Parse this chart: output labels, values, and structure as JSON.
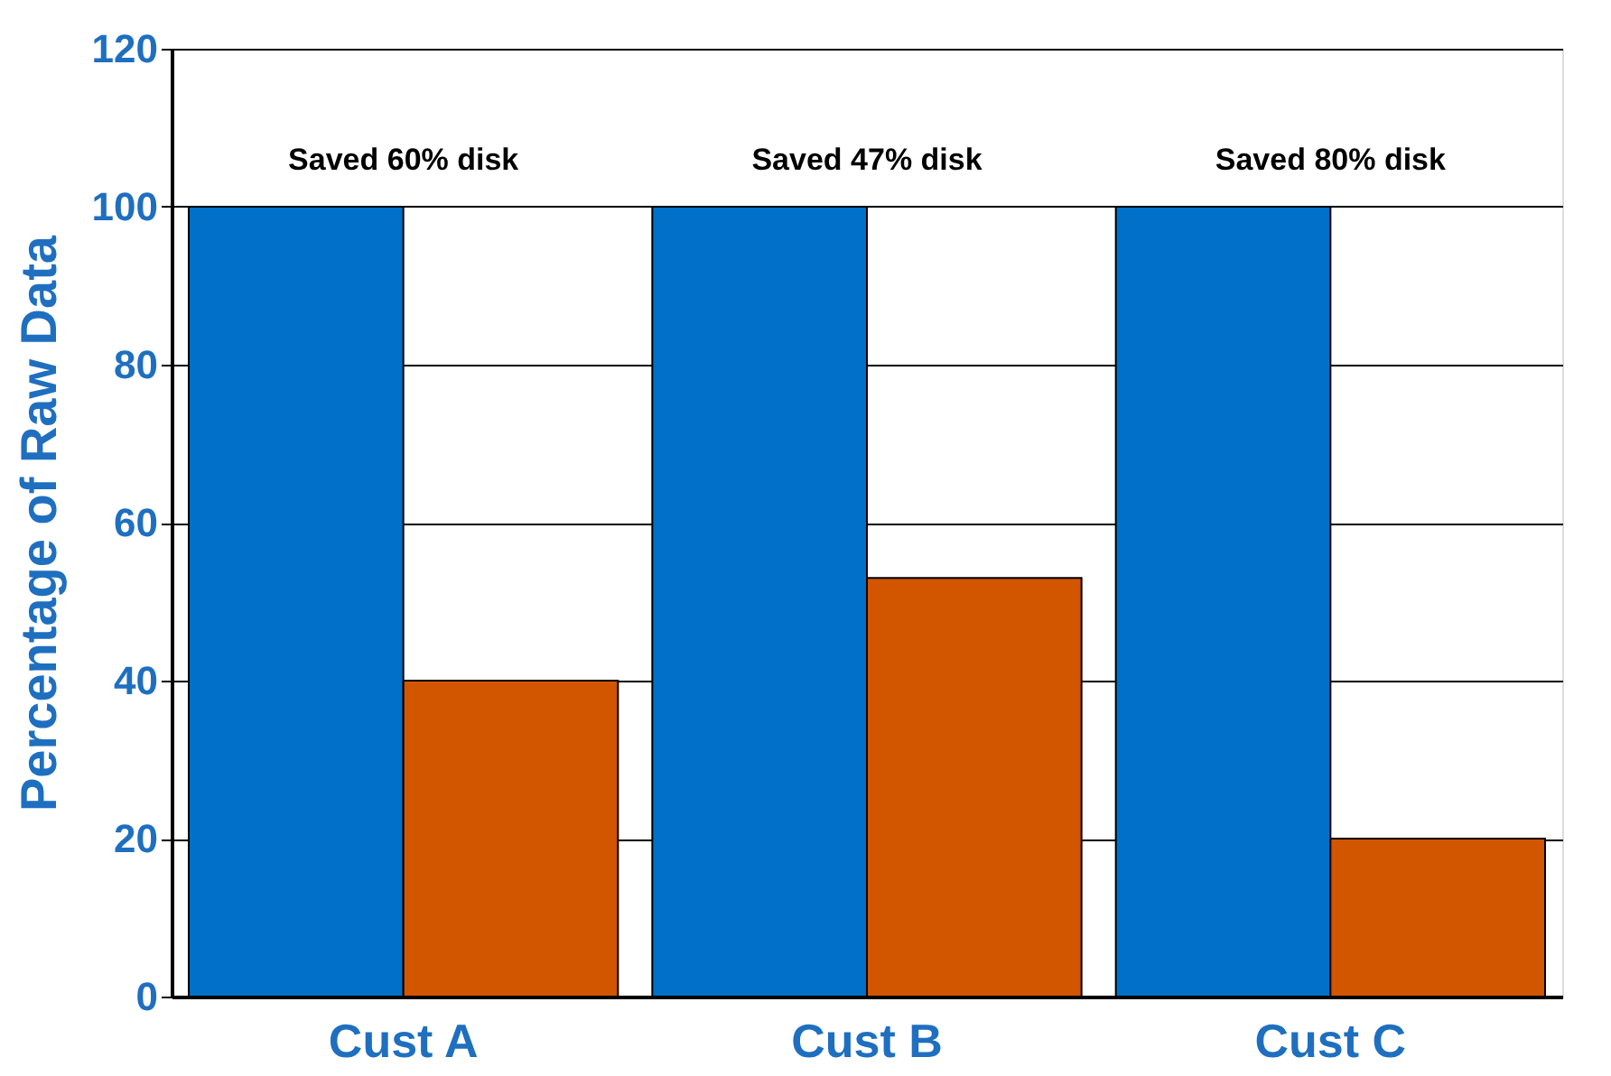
{
  "chart_data": {
    "type": "bar",
    "ylabel": "Percentage of Raw Data",
    "categories": [
      "Cust A",
      "Cust B",
      "Cust C"
    ],
    "series": [
      {
        "color": "#0070c8",
        "values": [
          100,
          100,
          100
        ]
      },
      {
        "color": "#d25500",
        "values": [
          40,
          53,
          20
        ]
      }
    ],
    "annotations": [
      "Saved 60% disk",
      "Saved 47% disk",
      "Saved 80% disk"
    ],
    "ylim": [
      0,
      120
    ],
    "yticks": [
      0,
      20,
      40,
      60,
      80,
      100,
      120
    ],
    "grid": "y",
    "legend": false
  }
}
